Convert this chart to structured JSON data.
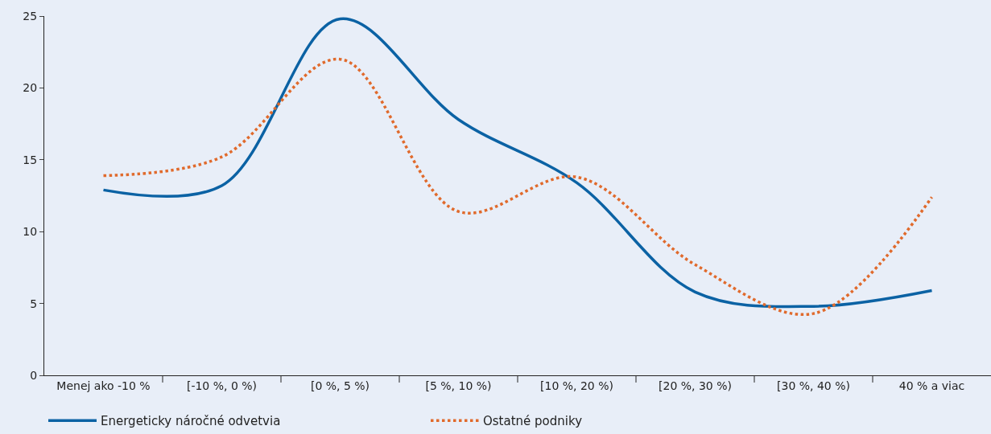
{
  "chart_data": {
    "type": "line",
    "categories": [
      "Menej ako -10 %",
      "[-10 %, 0 %)",
      "[0 %, 5 %)",
      "[5 %, 10 %)",
      "[10 %, 20 %)",
      "[20 %, 30 %)",
      "[30 %, 40 %)",
      "40 % a viac"
    ],
    "series": [
      {
        "name": "Energeticky náročné odvetvia",
        "color": "#0b62a4",
        "line_style": "solid",
        "values": [
          12.9,
          13.2,
          24.8,
          17.8,
          13.4,
          5.8,
          4.8,
          5.9
        ]
      },
      {
        "name": "Ostatné podniky",
        "color": "#e06a2c",
        "line_style": "dotted",
        "values": [
          13.9,
          15.2,
          22.0,
          11.4,
          13.8,
          7.7,
          4.3,
          12.4
        ]
      }
    ],
    "ylim": [
      0,
      25
    ],
    "yticks": [
      0,
      5,
      10,
      15,
      20,
      25
    ],
    "grid": false,
    "legend": "bottom left",
    "marker": "none"
  }
}
